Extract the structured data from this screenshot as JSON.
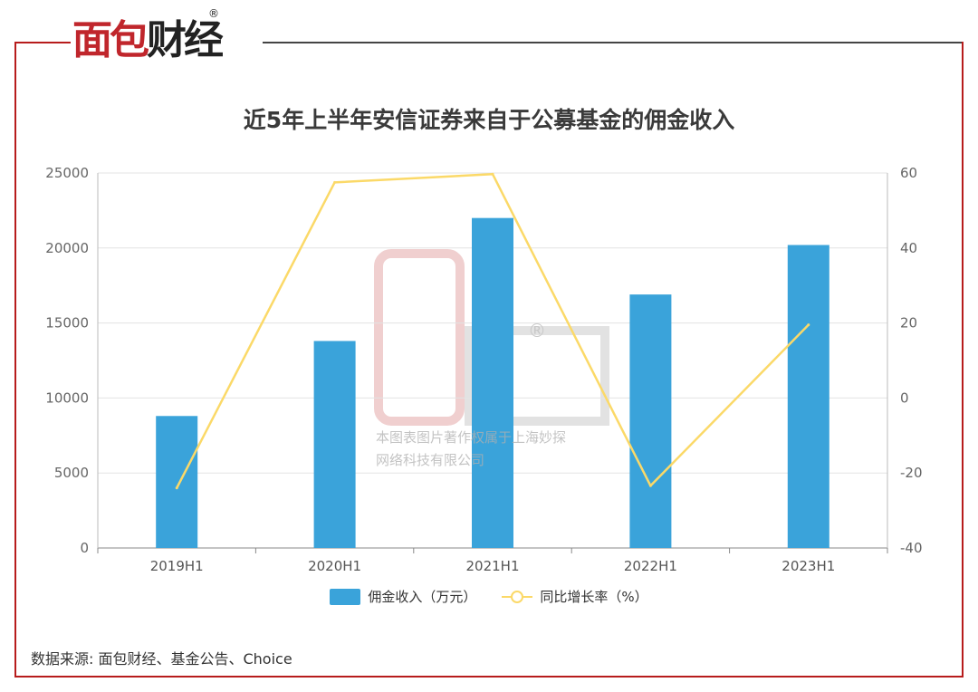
{
  "brand": {
    "logo_text_1": "面包",
    "logo_text_2": "财经",
    "registered_mark": "®"
  },
  "watermark": {
    "line1": "本图表图片著作权属于上海妙探",
    "line2": "网络科技有限公司"
  },
  "source_note": "数据来源: 面包财经、基金公告、Choice",
  "colors": {
    "bar": "#3aa3da",
    "line": "#fbd968",
    "frame": "#b71c1c",
    "grid": "#e3e3e3"
  },
  "chart_data": {
    "type": "bar",
    "title": "近5年上半年安信证券来自于公募基金的佣金收入",
    "categories": [
      "2019H1",
      "2020H1",
      "2021H1",
      "2022H1",
      "2023H1"
    ],
    "series": [
      {
        "name": "佣金收入（万元）",
        "type": "bar",
        "axis": "left",
        "values": [
          8800,
          13800,
          22000,
          16900,
          20200
        ]
      },
      {
        "name": "同比增长率（%）",
        "type": "line",
        "axis": "right",
        "values": [
          -24,
          57.5,
          59.7,
          -23.4,
          19.5
        ]
      }
    ],
    "y_left": {
      "ylim": [
        0,
        25000
      ],
      "ticks": [
        0,
        5000,
        10000,
        15000,
        20000,
        25000
      ]
    },
    "y_right": {
      "ylim": [
        -40,
        60
      ],
      "ticks": [
        -40,
        -20,
        0,
        20,
        40,
        60
      ]
    },
    "grid": true,
    "legend_position": "bottom"
  }
}
